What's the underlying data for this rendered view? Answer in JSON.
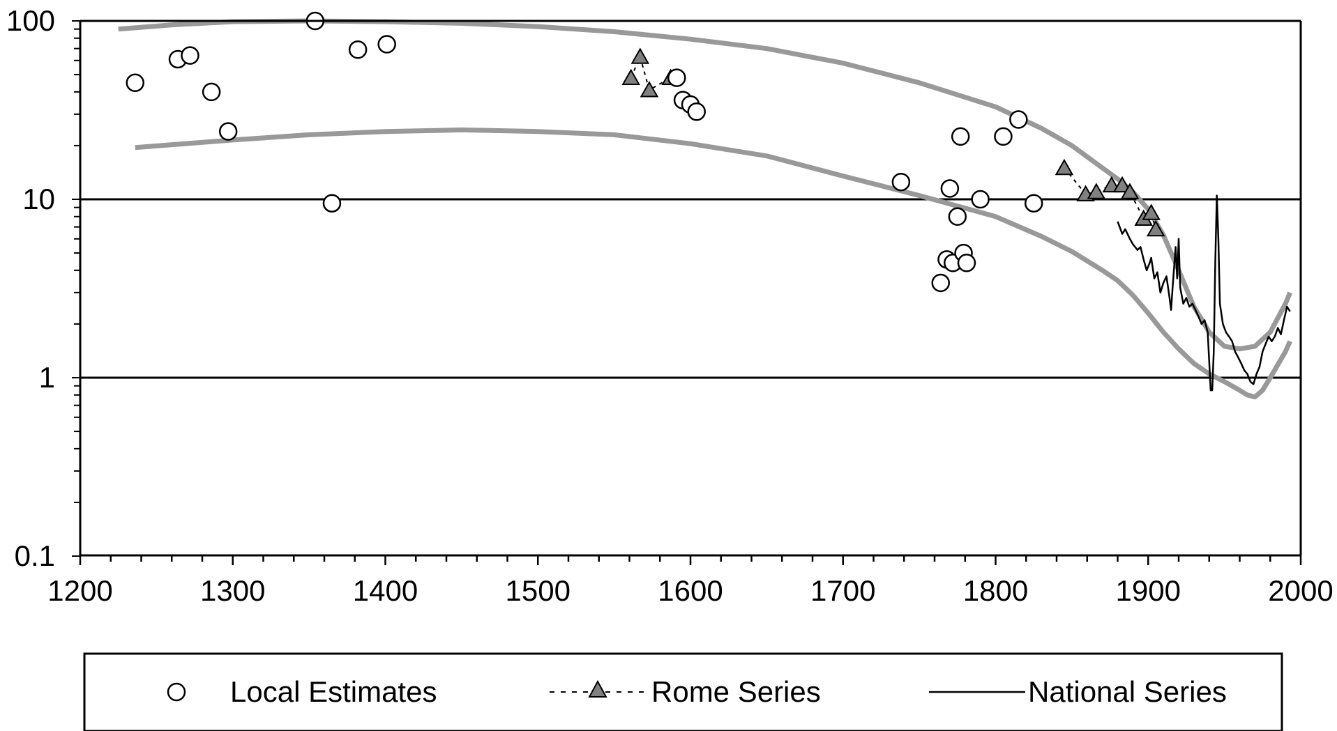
{
  "chart_data": {
    "type": "scatter",
    "title": "",
    "xlabel": "",
    "ylabel": "",
    "x_scale": "linear",
    "y_scale": "log",
    "xlim": [
      1200,
      2000
    ],
    "ylim": [
      0.1,
      100
    ],
    "x_ticks": [
      "1200",
      "1300",
      "1400",
      "1500",
      "1600",
      "1700",
      "1800",
      "1900",
      "2000"
    ],
    "y_ticks": [
      "100",
      "10",
      "1",
      "0.1"
    ],
    "grid": "major y gridlines at 1 and 10",
    "legend_position": "bottom",
    "legend": {
      "local_label": "Local Estimates",
      "rome_label": "Rome Series",
      "national_label": "National Series"
    },
    "colors": {
      "envelope": "#999999",
      "marker_fill_triangle": "#808080",
      "axis": "#000000"
    },
    "series": [
      {
        "name": "Local Estimates",
        "marker": "circle-open",
        "points": [
          [
            1236,
            45
          ],
          [
            1264,
            61
          ],
          [
            1272,
            64
          ],
          [
            1286,
            40
          ],
          [
            1297,
            24
          ],
          [
            1354,
            100
          ],
          [
            1365,
            9.5
          ],
          [
            1382,
            69
          ],
          [
            1401,
            74
          ],
          [
            1591,
            48
          ],
          [
            1595,
            36
          ],
          [
            1600,
            34
          ],
          [
            1604,
            31
          ],
          [
            1738,
            12.5
          ],
          [
            1764,
            3.4
          ],
          [
            1768,
            4.6
          ],
          [
            1770,
            11.5
          ],
          [
            1772,
            4.4
          ],
          [
            1775,
            8
          ],
          [
            1777,
            22.5
          ],
          [
            1779,
            5
          ],
          [
            1781,
            4.4
          ],
          [
            1790,
            10
          ],
          [
            1805,
            22.5
          ],
          [
            1815,
            28
          ],
          [
            1825,
            9.5
          ]
        ]
      },
      {
        "name": "Rome Series",
        "marker": "triangle-filled",
        "line": "dashed",
        "groups": [
          [
            [
              1561,
              48
            ],
            [
              1567,
              63
            ],
            [
              1573,
              41
            ],
            [
              1587,
              48
            ]
          ],
          [
            [
              1845,
              15
            ],
            [
              1859,
              10.7
            ],
            [
              1866,
              11
            ],
            [
              1876,
              12
            ],
            [
              1883,
              12
            ],
            [
              1888,
              11
            ],
            [
              1897,
              7.8
            ],
            [
              1902,
              8.4
            ],
            [
              1905,
              6.8
            ]
          ]
        ]
      },
      {
        "name": "National Series",
        "line": "solid",
        "points": [
          [
            1880,
            7.5
          ],
          [
            1883,
            6.4
          ],
          [
            1885,
            6.8
          ],
          [
            1888,
            6.0
          ],
          [
            1890,
            5.6
          ],
          [
            1893,
            5.2
          ],
          [
            1895,
            5.4
          ],
          [
            1897,
            4.6
          ],
          [
            1899,
            4.0
          ],
          [
            1901,
            4.4
          ],
          [
            1902,
            4.7
          ],
          [
            1904,
            3.6
          ],
          [
            1906,
            3.9
          ],
          [
            1908,
            3.0
          ],
          [
            1910,
            3.4
          ],
          [
            1912,
            3.7
          ],
          [
            1914,
            2.8
          ],
          [
            1915,
            2.4
          ],
          [
            1916,
            3.2
          ],
          [
            1918,
            5.4
          ],
          [
            1919,
            3.6
          ],
          [
            1920,
            6.0
          ],
          [
            1921,
            3.2
          ],
          [
            1923,
            2.6
          ],
          [
            1925,
            2.8
          ],
          [
            1927,
            2.5
          ],
          [
            1929,
            2.6
          ],
          [
            1931,
            2.4
          ],
          [
            1933,
            2.2
          ],
          [
            1935,
            2.0
          ],
          [
            1937,
            2.1
          ],
          [
            1939,
            1.8
          ],
          [
            1941,
            0.85
          ],
          [
            1942,
            0.85
          ],
          [
            1943,
            1.4
          ],
          [
            1944,
            4.5
          ],
          [
            1945,
            10.5
          ],
          [
            1946,
            6.0
          ],
          [
            1947,
            2.6
          ],
          [
            1949,
            2.0
          ],
          [
            1951,
            1.8
          ],
          [
            1953,
            1.7
          ],
          [
            1955,
            1.6
          ],
          [
            1957,
            1.4
          ],
          [
            1959,
            1.3
          ],
          [
            1961,
            1.2
          ],
          [
            1963,
            1.1
          ],
          [
            1965,
            1.05
          ],
          [
            1967,
            0.95
          ],
          [
            1969,
            0.92
          ],
          [
            1971,
            1.05
          ],
          [
            1973,
            1.15
          ],
          [
            1975,
            1.4
          ],
          [
            1977,
            1.55
          ],
          [
            1979,
            1.7
          ],
          [
            1981,
            1.6
          ],
          [
            1983,
            1.7
          ],
          [
            1985,
            1.9
          ],
          [
            1987,
            1.75
          ],
          [
            1989,
            2.1
          ],
          [
            1991,
            2.5
          ],
          [
            1993,
            2.35
          ]
        ]
      }
    ],
    "envelope_upper": [
      [
        1225,
        90
      ],
      [
        1260,
        95
      ],
      [
        1300,
        99
      ],
      [
        1350,
        100
      ],
      [
        1400,
        99
      ],
      [
        1450,
        97
      ],
      [
        1500,
        93
      ],
      [
        1550,
        87
      ],
      [
        1600,
        79
      ],
      [
        1650,
        70
      ],
      [
        1700,
        58
      ],
      [
        1750,
        45
      ],
      [
        1800,
        33
      ],
      [
        1830,
        25
      ],
      [
        1850,
        20
      ],
      [
        1870,
        15
      ],
      [
        1880,
        13
      ],
      [
        1890,
        11
      ],
      [
        1900,
        8.8
      ],
      [
        1910,
        6.3
      ],
      [
        1920,
        4.0
      ],
      [
        1930,
        2.5
      ],
      [
        1940,
        1.8
      ],
      [
        1950,
        1.5
      ],
      [
        1960,
        1.45
      ],
      [
        1970,
        1.5
      ],
      [
        1980,
        1.8
      ],
      [
        1990,
        2.6
      ],
      [
        1993,
        3.0
      ]
    ],
    "envelope_lower": [
      [
        1236,
        19.5
      ],
      [
        1300,
        21.5
      ],
      [
        1350,
        23
      ],
      [
        1400,
        24
      ],
      [
        1450,
        24.5
      ],
      [
        1500,
        24
      ],
      [
        1550,
        23
      ],
      [
        1600,
        20.5
      ],
      [
        1650,
        17.5
      ],
      [
        1700,
        13.5
      ],
      [
        1750,
        10.5
      ],
      [
        1800,
        8.0
      ],
      [
        1830,
        6.2
      ],
      [
        1850,
        5.1
      ],
      [
        1870,
        4.0
      ],
      [
        1880,
        3.5
      ],
      [
        1890,
        2.9
      ],
      [
        1900,
        2.3
      ],
      [
        1910,
        1.8
      ],
      [
        1920,
        1.45
      ],
      [
        1930,
        1.2
      ],
      [
        1940,
        1.05
      ],
      [
        1950,
        0.95
      ],
      [
        1960,
        0.85
      ],
      [
        1965,
        0.8
      ],
      [
        1970,
        0.78
      ],
      [
        1975,
        0.85
      ],
      [
        1980,
        1.0
      ],
      [
        1990,
        1.4
      ],
      [
        1993,
        1.6
      ]
    ]
  }
}
